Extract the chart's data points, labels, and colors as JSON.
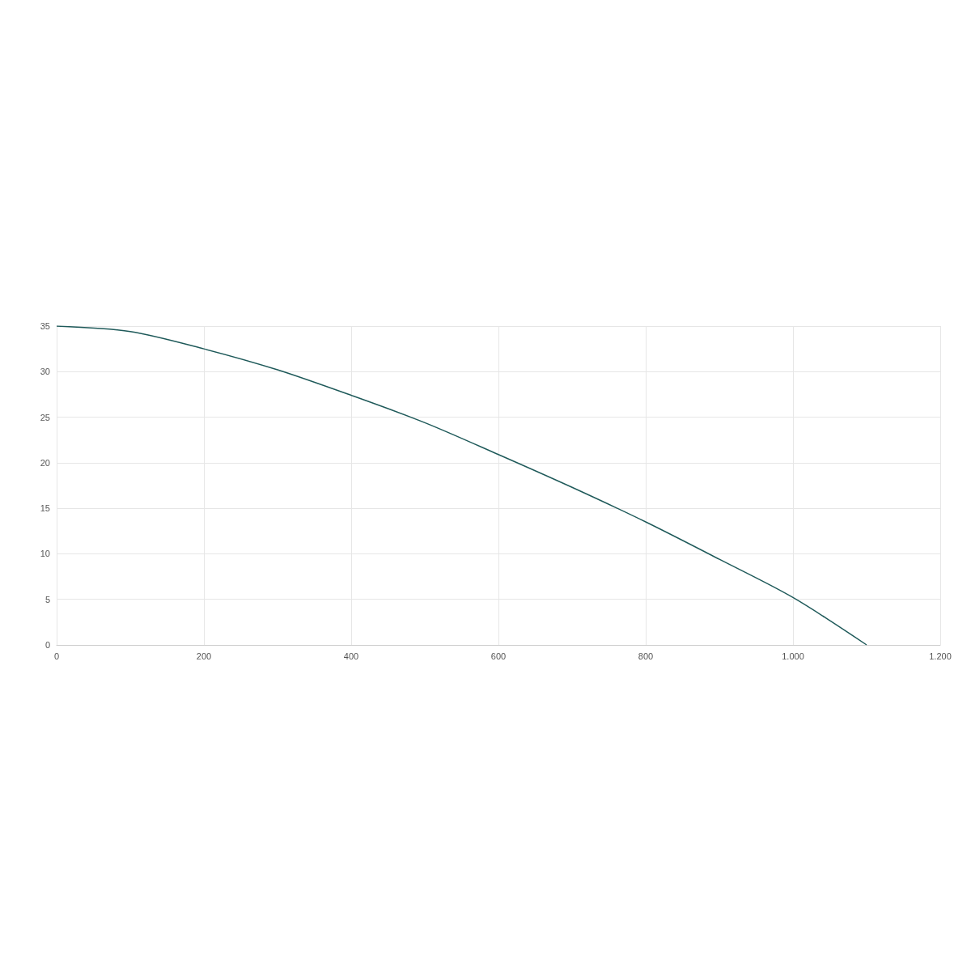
{
  "chart_data": {
    "type": "line",
    "x": [
      0,
      100,
      200,
      300,
      400,
      500,
      600,
      700,
      800,
      900,
      1000,
      1100
    ],
    "series": [
      {
        "color": "#1f5a5a",
        "values": [
          35,
          34.4,
          32.5,
          30.2,
          27.4,
          24.4,
          20.9,
          17.3,
          13.5,
          9.4,
          5.2,
          0
        ]
      }
    ],
    "xlim": [
      0,
      1200
    ],
    "xticks": [
      0,
      200,
      400,
      600,
      800,
      {
        "value": 1000,
        "label": "1.000"
      },
      {
        "value": 1200,
        "label": "1.200"
      }
    ],
    "ylim": [
      0,
      35
    ],
    "yticks": [
      0,
      5,
      10,
      15,
      20,
      25,
      30,
      35
    ],
    "grid": true
  }
}
